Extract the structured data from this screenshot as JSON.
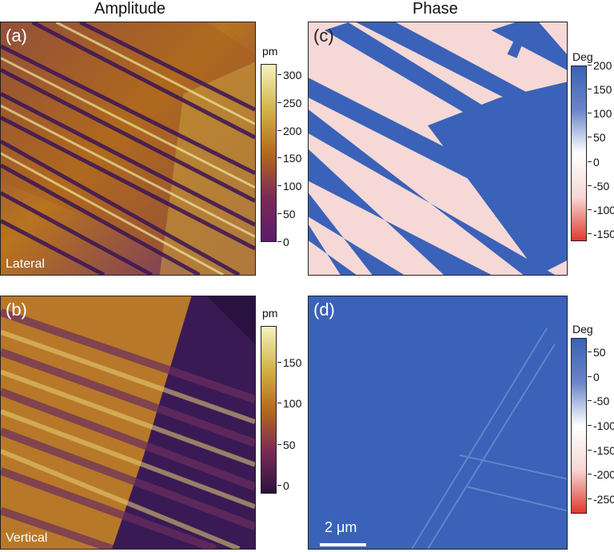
{
  "titles": {
    "amplitude": "Amplitude",
    "phase": "Phase"
  },
  "panels": {
    "a": {
      "label": "(a)",
      "mode": "Lateral"
    },
    "b": {
      "label": "(b)",
      "mode": "Vertical"
    },
    "c": {
      "label": "(c)"
    },
    "d": {
      "label": "(d)"
    }
  },
  "colorbars": {
    "a": {
      "unit": "pm",
      "ticks": [
        "300",
        "250",
        "200",
        "150",
        "100",
        "50",
        "0"
      ],
      "range": [
        0,
        320
      ]
    },
    "b": {
      "unit": "pm",
      "ticks": [
        "150",
        "100",
        "50",
        "0"
      ],
      "range": [
        -10,
        195
      ]
    },
    "c": {
      "unit": "Deg",
      "ticks": [
        "200",
        "150",
        "100",
        "50",
        "0",
        "-50",
        "-100",
        "-150"
      ],
      "range": [
        -165,
        200
      ]
    },
    "d": {
      "unit": "Deg",
      "ticks": [
        "50",
        "0",
        "-50",
        "-100",
        "-150",
        "-200",
        "-250"
      ],
      "range": [
        -280,
        80
      ]
    }
  },
  "scale_bar": {
    "label": "2 μm"
  },
  "colors": {
    "amp_low": "#5a1a6e",
    "amp_mid": "#b3661a",
    "amp_high": "#f2f0b0",
    "amp_dark": "#2c1240",
    "phase_blue": "#3a62b8",
    "phase_white": "#ffffff",
    "phase_pink": "#f6d8d6",
    "phase_red": "#e03a2e"
  }
}
